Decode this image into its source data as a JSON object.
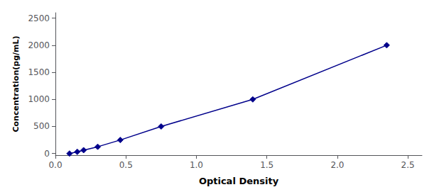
{
  "chart_data": {
    "type": "line",
    "x": [
      0.1,
      0.155,
      0.2,
      0.3,
      0.46,
      0.75,
      1.4,
      2.35
    ],
    "values": [
      0,
      31.25,
      62.5,
      125,
      250,
      500,
      1000,
      2000
    ],
    "color": "#00008B",
    "marker": "diamond",
    "line_style": "solid",
    "xlabel": "Optical Density",
    "ylabel": "Concentration(pg/mL)",
    "xlim": [
      0.0,
      2.6
    ],
    "ylim": [
      -30,
      2600
    ],
    "xticks": [
      {
        "value": 0,
        "label": "0.0"
      },
      0.5,
      {
        "value": 1,
        "label": "1.0"
      },
      1.5,
      {
        "value": 2,
        "label": "2.0"
      },
      2.5
    ],
    "yticks": [
      0,
      500,
      1000,
      1500,
      2000,
      2500
    ],
    "grid": false
  }
}
